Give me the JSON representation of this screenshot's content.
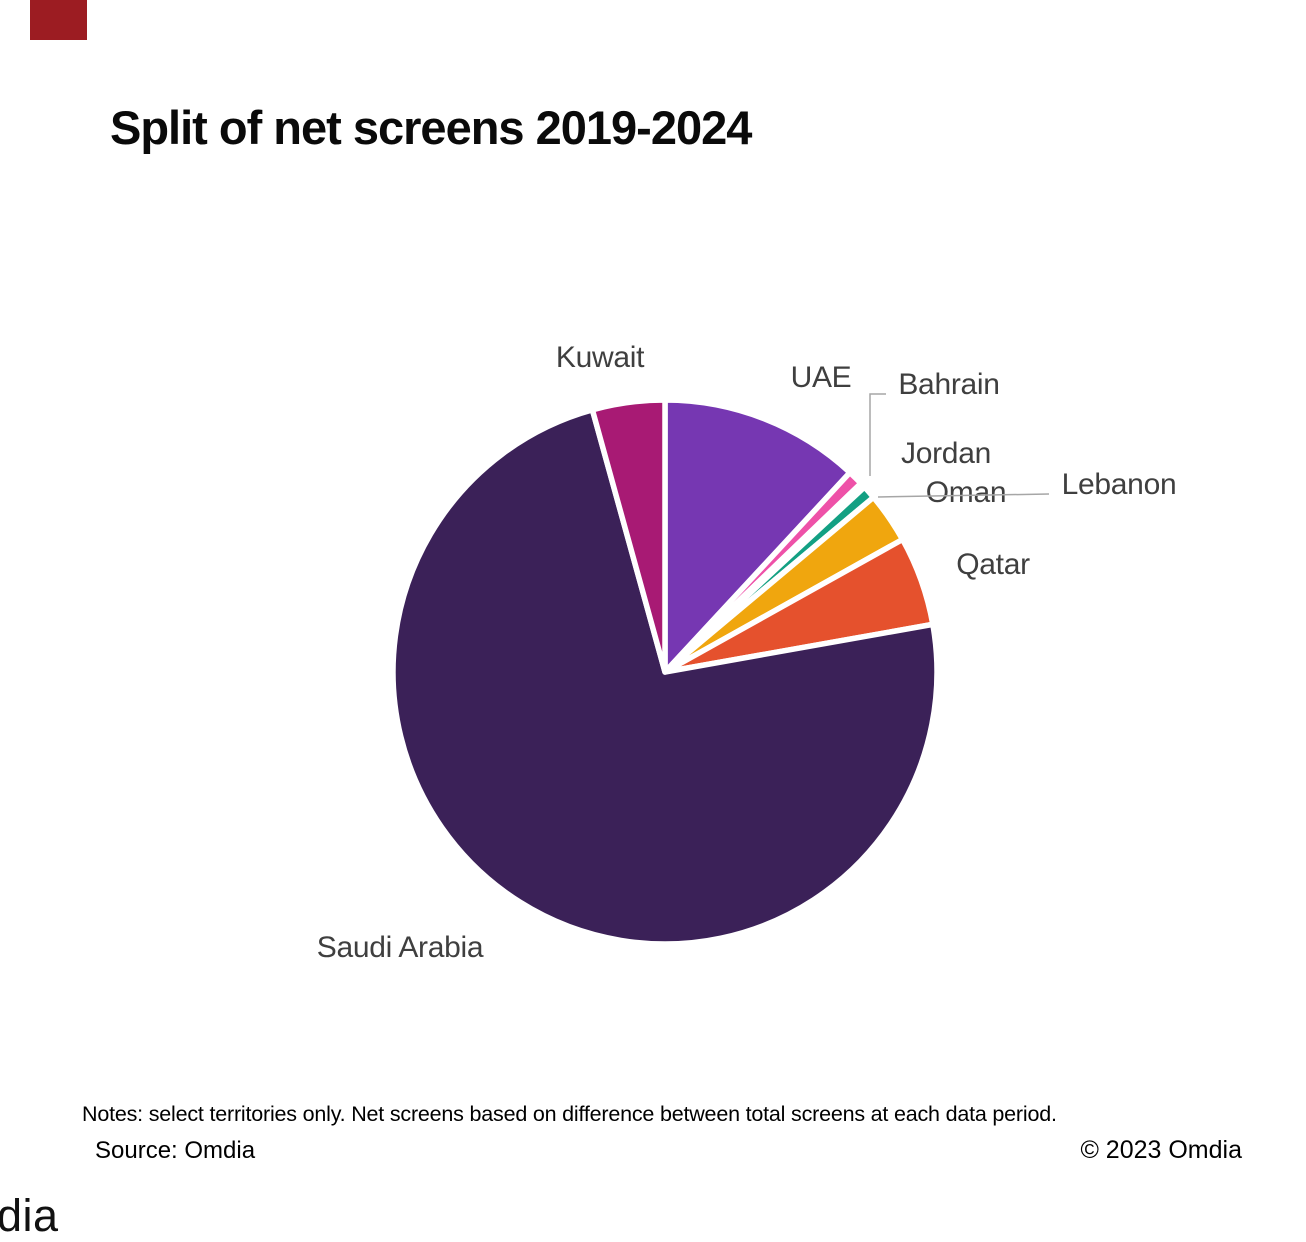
{
  "title": "Split of net screens 2019-2024",
  "branding": {
    "corner_block_color": "#9c1c22",
    "bottom_left_logo_text": "dia"
  },
  "footer": {
    "notes": "Notes: select territories only. Net screens based on difference between total screens at each data period.",
    "source": "Source: Omdia",
    "copyright": "© 2023 Omdia"
  },
  "chart_data": {
    "type": "pie",
    "title": "Split of net screens 2019-2024",
    "unit": "share of net screens (%), estimated from slice angles — no numeric values printed on chart",
    "start_angle_deg": 0,
    "direction": "clockwise",
    "legend": "none — direct category labels outside slices, gray leader lines for Bahrain and Lebanon",
    "slice_border_color": "#ffffff",
    "leader_line_color": "#a6a6a6",
    "label_text_color": "#3f3f3f",
    "slices": [
      {
        "label": "UAE",
        "value_pct": 11.9,
        "color": "#7637b2"
      },
      {
        "label": "Bahrain",
        "value_pct": 0.9,
        "color": "#ee51a8"
      },
      {
        "label": "Jordan",
        "value_pct": 0.3,
        "color": "#e0409a"
      },
      {
        "label": "Lebanon",
        "value_pct": 0.8,
        "color": "#13a083"
      },
      {
        "label": "Oman",
        "value_pct": 3.0,
        "color": "#f0a60e"
      },
      {
        "label": "Qatar",
        "value_pct": 5.3,
        "color": "#e5512d"
      },
      {
        "label": "Saudi Arabia",
        "value_pct": 73.5,
        "color": "#3b2158"
      },
      {
        "label": "Kuwait",
        "value_pct": 4.3,
        "color": "#a81a74"
      }
    ]
  }
}
